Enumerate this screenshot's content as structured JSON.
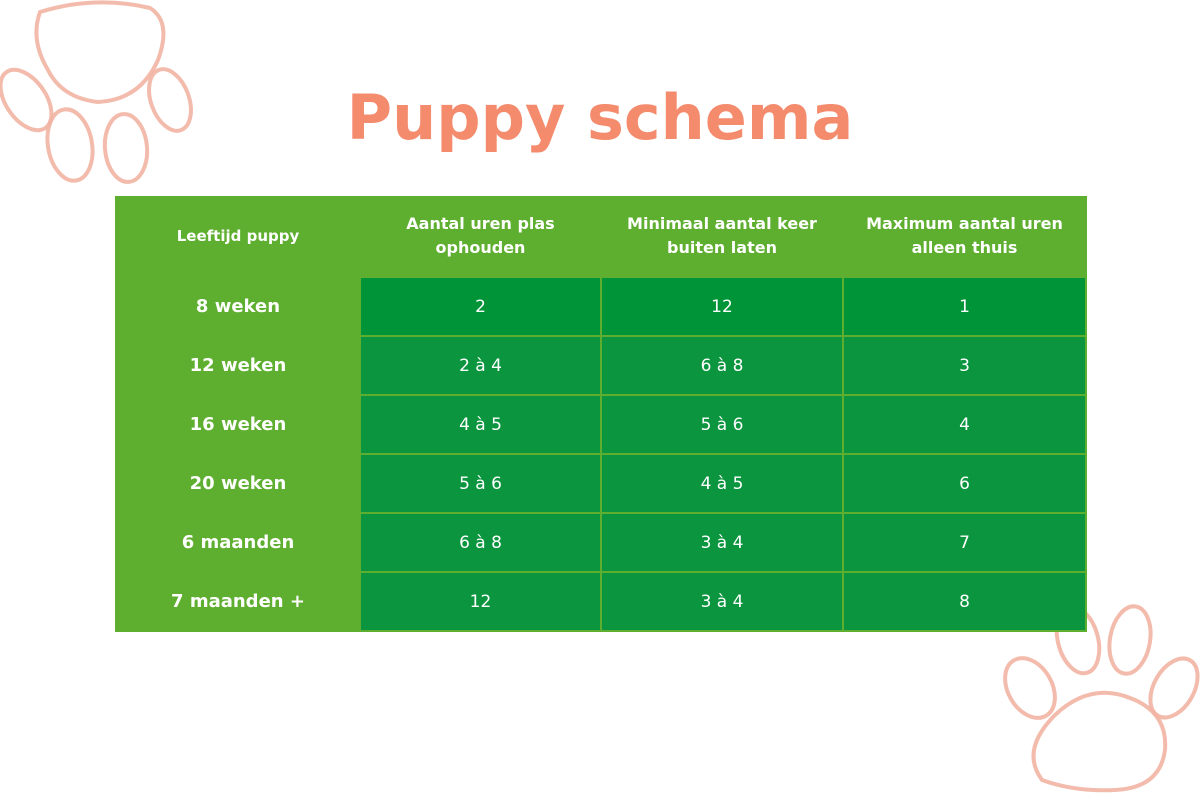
{
  "title": "Puppy schema",
  "table": {
    "headers": [
      "Leeftijd puppy",
      "Aantal uren plas ophouden",
      "Minimaal aantal keer buiten laten",
      "Maximum aantal uren alleen thuis"
    ],
    "rows": [
      [
        "8 weken",
        "2",
        "12",
        "1"
      ],
      [
        "12 weken",
        "2 à 4",
        "6 à 8",
        "3"
      ],
      [
        "16 weken",
        "4 à 5",
        "5 à 6",
        "4"
      ],
      [
        "20 weken",
        "5 à 6",
        "4 à 5",
        "6"
      ],
      [
        "6 maanden",
        "6 à 8",
        "3 à 4",
        "7"
      ],
      [
        "7 maanden +",
        "12",
        "3 à 4",
        "8"
      ]
    ]
  },
  "colors": {
    "title": "#f48b6d",
    "table_light_green": "#5eaf2f",
    "table_dark_green": "#0b953e",
    "paw_outline": "#f2b4a3"
  },
  "decorations": [
    "paw-print-icon",
    "paw-print-icon"
  ]
}
